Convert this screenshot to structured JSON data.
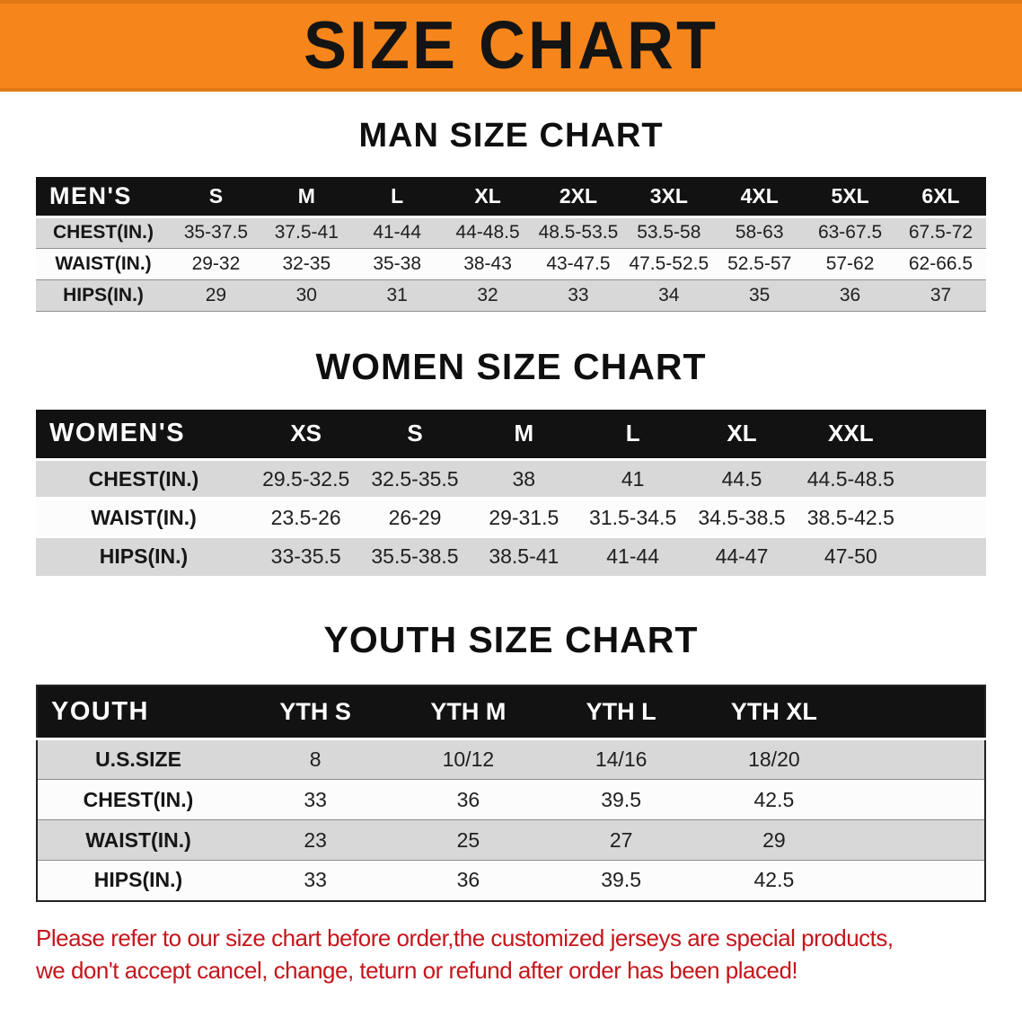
{
  "banner": {
    "title": "SIZE CHART"
  },
  "sections": [
    {
      "heading": "MAN SIZE CHART",
      "header": [
        "MEN'S",
        "S",
        "M",
        "L",
        "XL",
        "2XL",
        "3XL",
        "4XL",
        "5XL",
        "6XL"
      ],
      "rows": [
        [
          "CHEST(IN.)",
          "35-37.5",
          "37.5-41",
          "41-44",
          "44-48.5",
          "48.5-53.5",
          "53.5-58",
          "58-63",
          "63-67.5",
          "67.5-72"
        ],
        [
          "WAIST(IN.)",
          "29-32",
          "32-35",
          "35-38",
          "38-43",
          "43-47.5",
          "47.5-52.5",
          "52.5-57",
          "57-62",
          "62-66.5"
        ],
        [
          "HIPS(IN.)",
          "29",
          "30",
          "31",
          "32",
          "33",
          "34",
          "35",
          "36",
          "37"
        ]
      ]
    },
    {
      "heading": "WOMEN SIZE CHART",
      "header": [
        "WOMEN'S",
        "XS",
        "S",
        "M",
        "L",
        "XL",
        "XXL"
      ],
      "rows": [
        [
          "CHEST(IN.)",
          "29.5-32.5",
          "32.5-35.5",
          "38",
          "41",
          "44.5",
          "44.5-48.5"
        ],
        [
          "WAIST(IN.)",
          "23.5-26",
          "26-29",
          "29-31.5",
          "31.5-34.5",
          "34.5-38.5",
          "38.5-42.5"
        ],
        [
          "HIPS(IN.)",
          "33-35.5",
          "35.5-38.5",
          "38.5-41",
          "41-44",
          "44-47",
          "47-50"
        ]
      ]
    },
    {
      "heading": "YOUTH SIZE CHART",
      "header": [
        "YOUTH",
        "YTH S",
        "YTH M",
        "YTH L",
        "YTH XL"
      ],
      "rows": [
        [
          "U.S.SIZE",
          "8",
          "10/12",
          "14/16",
          "18/20"
        ],
        [
          "CHEST(IN.)",
          "33",
          "36",
          "39.5",
          "42.5"
        ],
        [
          "WAIST(IN.)",
          "23",
          "25",
          "27",
          "29"
        ],
        [
          "HIPS(IN.)",
          "33",
          "36",
          "39.5",
          "42.5"
        ]
      ]
    }
  ],
  "footer": {
    "line1": "Please refer to our size chart before order,the customized jerseys are special products,",
    "line2": "we don't accept cancel, change, teturn or refund after order has been placed!"
  },
  "colors": {
    "banner_bg": "#F6861C",
    "header_bg": "#121212",
    "row_alt_bg": "#D8D8D8",
    "footer_text": "#C4161C"
  }
}
